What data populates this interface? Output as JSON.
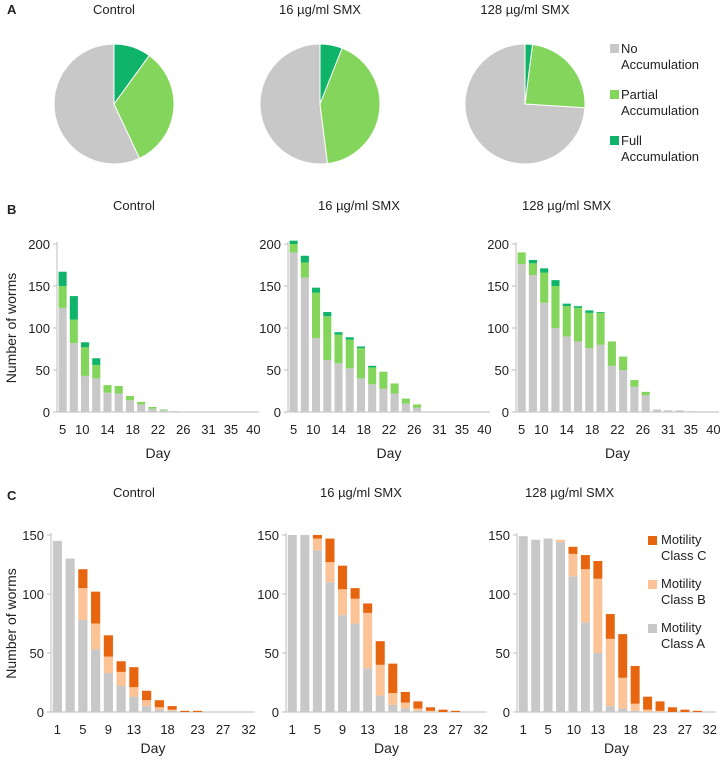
{
  "panel_labels": [
    "A",
    "B",
    "C"
  ],
  "colors": {
    "no_accumulation": "#c8c8c8",
    "partial_accumulation": "#83d65b",
    "full_accumulation": "#0fb46a",
    "motility_a": "#c8c8c8",
    "motility_b": "#fbc396",
    "motility_c": "#e8650f",
    "axis": "#bdbdbd"
  },
  "chart_data": [
    {
      "id": "A-control",
      "panel": "A",
      "type": "pie",
      "title": "Control",
      "labels": [
        "No Accumulation",
        "Partial Accumulation",
        "Full Accumulation"
      ],
      "values": [
        57,
        33,
        10
      ]
    },
    {
      "id": "A-16",
      "panel": "A",
      "type": "pie",
      "title": "16 µg/ml SMX",
      "labels": [
        "No Accumulation",
        "Partial Accumulation",
        "Full Accumulation"
      ],
      "values": [
        52,
        42,
        6
      ]
    },
    {
      "id": "A-128",
      "panel": "A",
      "type": "pie",
      "title": "128 µg/ml SMX",
      "labels": [
        "No Accumulation",
        "Partial Accumulation",
        "Full Accumulation"
      ],
      "values": [
        74,
        24,
        2
      ],
      "legend": [
        "No Accumulation",
        "Partial Accumulation",
        "Full Accumulation"
      ]
    },
    {
      "id": "B-control",
      "panel": "B",
      "type": "bar",
      "stacked": true,
      "title": "Control",
      "xlabel": "Day",
      "ylabel": "Number of worms",
      "ylim": [
        0,
        200
      ],
      "yticks": [
        "0",
        "50",
        "100",
        "150",
        "200"
      ],
      "xticks": [
        "5",
        "10",
        "14",
        "18",
        "22",
        "26",
        "31",
        "35",
        "40"
      ],
      "days": [
        5,
        7,
        9,
        11,
        13,
        15,
        17,
        19,
        21,
        23,
        25,
        27,
        29,
        31,
        33,
        35,
        37,
        40
      ],
      "series": [
        {
          "name": "No Accumulation",
          "values": [
            124,
            82,
            43,
            40,
            23,
            22,
            14,
            9,
            4,
            2,
            1,
            0,
            0,
            0,
            0,
            0,
            0,
            0
          ]
        },
        {
          "name": "Partial Accumulation",
          "values": [
            26,
            28,
            34,
            16,
            9,
            9,
            5,
            3,
            2,
            1,
            0,
            0,
            0,
            0,
            0,
            0,
            0,
            0
          ]
        },
        {
          "name": "Full Accumulation",
          "values": [
            17,
            28,
            6,
            8,
            0,
            0,
            0,
            0,
            0,
            0,
            0,
            0,
            0,
            0,
            0,
            0,
            0,
            0
          ]
        }
      ]
    },
    {
      "id": "B-16",
      "panel": "B",
      "type": "bar",
      "stacked": true,
      "title": "16 µg/ml SMX",
      "xlabel": "Day",
      "ylabel": "",
      "ylim": [
        0,
        200
      ],
      "yticks": [
        "0",
        "50",
        "100",
        "150",
        "200"
      ],
      "xticks": [
        "5",
        "10",
        "14",
        "18",
        "22",
        "26",
        "31",
        "35",
        "40"
      ],
      "days": [
        5,
        7,
        9,
        11,
        13,
        15,
        17,
        19,
        21,
        23,
        25,
        27,
        29,
        31,
        33,
        35,
        37,
        40
      ],
      "series": [
        {
          "name": "No Accumulation",
          "values": [
            190,
            160,
            88,
            62,
            58,
            52,
            40,
            33,
            28,
            22,
            10,
            5,
            0,
            0,
            0,
            0,
            0,
            0
          ]
        },
        {
          "name": "Partial Accumulation",
          "values": [
            10,
            18,
            54,
            52,
            34,
            34,
            36,
            20,
            20,
            12,
            6,
            4,
            0,
            0,
            0,
            0,
            0,
            0
          ]
        },
        {
          "name": "Full Accumulation",
          "values": [
            4,
            8,
            6,
            5,
            3,
            3,
            2,
            2,
            0,
            0,
            0,
            0,
            0,
            0,
            0,
            0,
            0,
            0
          ]
        }
      ]
    },
    {
      "id": "B-128",
      "panel": "B",
      "type": "bar",
      "stacked": true,
      "title": "128 µg/ml SMX",
      "xlabel": "Day",
      "ylabel": "",
      "ylim": [
        0,
        200
      ],
      "yticks": [
        "0",
        "50",
        "100",
        "150",
        "200"
      ],
      "xticks": [
        "5",
        "10",
        "14",
        "18",
        "22",
        "26",
        "31",
        "35",
        "40"
      ],
      "days": [
        5,
        7,
        9,
        11,
        13,
        15,
        17,
        19,
        21,
        23,
        25,
        27,
        29,
        31,
        33,
        35,
        37,
        40
      ],
      "series": [
        {
          "name": "No Accumulation",
          "values": [
            176,
            163,
            130,
            100,
            90,
            84,
            76,
            80,
            55,
            50,
            30,
            20,
            3,
            2,
            2,
            1,
            0,
            0
          ]
        },
        {
          "name": "Partial Accumulation",
          "values": [
            14,
            14,
            36,
            50,
            36,
            40,
            42,
            38,
            29,
            16,
            8,
            4,
            0,
            0,
            0,
            0,
            0,
            0
          ]
        },
        {
          "name": "Full Accumulation",
          "values": [
            0,
            4,
            5,
            7,
            3,
            2,
            3,
            1,
            0,
            0,
            0,
            0,
            0,
            0,
            0,
            0,
            0,
            0
          ]
        }
      ]
    },
    {
      "id": "C-control",
      "panel": "C",
      "type": "bar",
      "stacked": true,
      "title": "Control",
      "xlabel": "Day",
      "ylabel": "Number of worms",
      "ylim": [
        0,
        150
      ],
      "yticks": [
        "0",
        "50",
        "100",
        "150"
      ],
      "xticks": [
        "1",
        "5",
        "9",
        "13",
        "18",
        "23",
        "27",
        "32"
      ],
      "days": [
        1,
        3,
        5,
        7,
        9,
        11,
        13,
        15,
        17,
        19,
        21,
        23,
        25,
        27,
        29,
        32
      ],
      "series": [
        {
          "name": "Motility Class A",
          "values": [
            145,
            130,
            78,
            53,
            33,
            22,
            13,
            5,
            2,
            1,
            0,
            0,
            0,
            0,
            0,
            0
          ]
        },
        {
          "name": "Motility Class B",
          "values": [
            0,
            0,
            27,
            22,
            14,
            12,
            8,
            5,
            2,
            1,
            0,
            0,
            0,
            0,
            0,
            0
          ]
        },
        {
          "name": "Motility Class C",
          "values": [
            0,
            0,
            16,
            27,
            18,
            9,
            17,
            8,
            6,
            3,
            1,
            1,
            0,
            0,
            0,
            0
          ]
        }
      ]
    },
    {
      "id": "C-16",
      "panel": "C",
      "type": "bar",
      "stacked": true,
      "title": "16 µg/ml SMX",
      "xlabel": "Day",
      "ylabel": "",
      "ylim": [
        0,
        150
      ],
      "yticks": [
        "0",
        "50",
        "100",
        "150"
      ],
      "xticks": [
        "1",
        "5",
        "9",
        "13",
        "18",
        "23",
        "27",
        "32"
      ],
      "days": [
        1,
        3,
        5,
        7,
        9,
        11,
        13,
        15,
        17,
        19,
        21,
        23,
        25,
        27,
        29,
        32
      ],
      "series": [
        {
          "name": "Motility Class A",
          "values": [
            150,
            150,
            137,
            110,
            82,
            75,
            37,
            14,
            6,
            3,
            1,
            0,
            0,
            0,
            0,
            0
          ]
        },
        {
          "name": "Motility Class B",
          "values": [
            0,
            0,
            10,
            17,
            22,
            21,
            47,
            26,
            10,
            5,
            2,
            1,
            0,
            0,
            0,
            0
          ]
        },
        {
          "name": "Motility Class C",
          "values": [
            0,
            0,
            3,
            20,
            20,
            9,
            8,
            20,
            25,
            9,
            6,
            3,
            2,
            1,
            0,
            0
          ]
        }
      ]
    },
    {
      "id": "C-128",
      "panel": "C",
      "type": "bar",
      "stacked": true,
      "title": "128 µg/ml SMX",
      "xlabel": "Day",
      "ylabel": "",
      "ylim": [
        0,
        150
      ],
      "yticks": [
        "0",
        "50",
        "100",
        "150"
      ],
      "xticks": [
        "1",
        "5",
        "10",
        "13",
        "18",
        "23",
        "27",
        "32"
      ],
      "days": [
        1,
        3,
        5,
        7,
        9,
        11,
        13,
        15,
        17,
        19,
        21,
        23,
        25,
        27,
        29,
        32
      ],
      "series": [
        {
          "name": "Motility Class A",
          "values": [
            149,
            146,
            147,
            144,
            115,
            76,
            50,
            5,
            3,
            1,
            0,
            0,
            0,
            0,
            0,
            0
          ]
        },
        {
          "name": "Motility Class B",
          "values": [
            0,
            0,
            0,
            2,
            19,
            45,
            63,
            57,
            26,
            6,
            2,
            1,
            0,
            0,
            0,
            0
          ]
        },
        {
          "name": "Motility Class C",
          "values": [
            0,
            0,
            0,
            0,
            6,
            12,
            15,
            21,
            37,
            32,
            11,
            8,
            4,
            2,
            1,
            0
          ]
        }
      ],
      "legend": [
        "Motility Class C",
        "Motility Class B",
        "Motility Class A"
      ]
    }
  ]
}
